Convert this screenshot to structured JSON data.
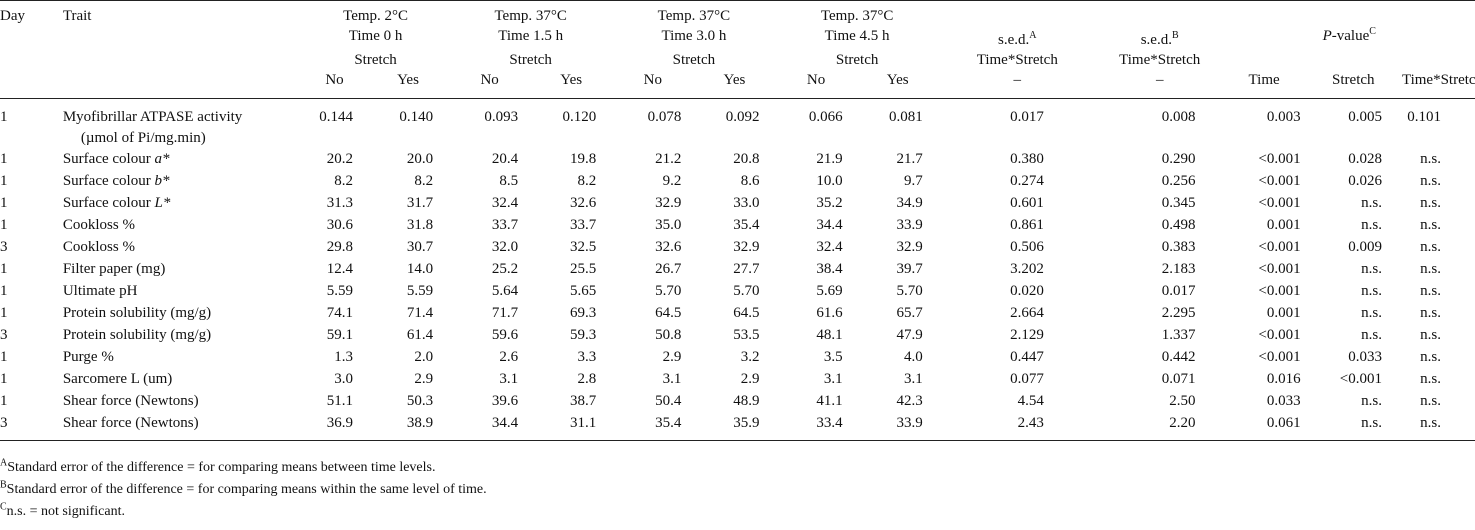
{
  "header": {
    "day": "Day",
    "trait": "Trait",
    "groups": [
      {
        "temp": "Temp. 2°C",
        "time": "Time 0 h",
        "stretch": "Stretch"
      },
      {
        "temp": "Temp. 37°C",
        "time": "Time 1.5 h",
        "stretch": "Stretch"
      },
      {
        "temp": "Temp. 37°C",
        "time": "Time 3.0 h",
        "stretch": "Stretch"
      },
      {
        "temp": "Temp. 37°C",
        "time": "Time 4.5 h",
        "stretch": "Stretch"
      }
    ],
    "no": "No",
    "yes": "Yes",
    "sed_a": {
      "label": "s.e.d.",
      "sup": "A",
      "sub": "Time*Stretch",
      "dash": "–"
    },
    "sed_b": {
      "label": "s.e.d.",
      "sup": "B",
      "sub": "Time*Stretch",
      "dash": "–"
    },
    "pvalue": {
      "italic": "P",
      "rest": "-value",
      "sup": "C"
    },
    "p_cols": [
      "Time",
      "Stretch",
      "Time*Stretch"
    ]
  },
  "rows": [
    {
      "day": "1",
      "trait": "Myofibrillar ATPASE activity",
      "trait_sub": "(µmol of Pi/mg.min)",
      "v": [
        "0.144",
        "0.140",
        "0.093",
        "0.120",
        "0.078",
        "0.092",
        "0.066",
        "0.081"
      ],
      "sed_a": "0.017",
      "sed_b": "0.008",
      "p": [
        "0.003",
        "0.005",
        "0.101"
      ]
    },
    {
      "day": "1",
      "trait": "Surface colour ",
      "trait_it": "a*",
      "v": [
        "20.2",
        "20.0",
        "20.4",
        "19.8",
        "21.2",
        "20.8",
        "21.9",
        "21.7"
      ],
      "sed_a": "0.380",
      "sed_b": "0.290",
      "p": [
        "<0.001",
        "0.028",
        "n.s."
      ]
    },
    {
      "day": "1",
      "trait": "Surface colour ",
      "trait_it": "b*",
      "v": [
        "8.2",
        "8.2",
        "8.5",
        "8.2",
        "9.2",
        "8.6",
        "10.0",
        "9.7"
      ],
      "sed_a": "0.274",
      "sed_b": "0.256",
      "p": [
        "<0.001",
        "0.026",
        "n.s."
      ]
    },
    {
      "day": "1",
      "trait": "Surface colour ",
      "trait_it": "L*",
      "v": [
        "31.3",
        "31.7",
        "32.4",
        "32.6",
        "32.9",
        "33.0",
        "35.2",
        "34.9"
      ],
      "sed_a": "0.601",
      "sed_b": "0.345",
      "p": [
        "<0.001",
        "n.s.",
        "n.s."
      ]
    },
    {
      "day": "1",
      "trait": "Cookloss %",
      "v": [
        "30.6",
        "31.8",
        "33.7",
        "33.7",
        "35.0",
        "35.4",
        "34.4",
        "33.9"
      ],
      "sed_a": "0.861",
      "sed_b": "0.498",
      "p": [
        "0.001",
        "n.s.",
        "n.s."
      ]
    },
    {
      "day": "3",
      "trait": "Cookloss %",
      "v": [
        "29.8",
        "30.7",
        "32.0",
        "32.5",
        "32.6",
        "32.9",
        "32.4",
        "32.9"
      ],
      "sed_a": "0.506",
      "sed_b": "0.383",
      "p": [
        "<0.001",
        "0.009",
        "n.s."
      ]
    },
    {
      "day": "1",
      "trait": "Filter paper (mg)",
      "v": [
        "12.4",
        "14.0",
        "25.2",
        "25.5",
        "26.7",
        "27.7",
        "38.4",
        "39.7"
      ],
      "sed_a": "3.202",
      "sed_b": "2.183",
      "p": [
        "<0.001",
        "n.s.",
        "n.s."
      ]
    },
    {
      "day": "1",
      "trait": "Ultimate pH",
      "v": [
        "5.59",
        "5.59",
        "5.64",
        "5.65",
        "5.70",
        "5.70",
        "5.69",
        "5.70"
      ],
      "sed_a": "0.020",
      "sed_b": "0.017",
      "p": [
        "<0.001",
        "n.s.",
        "n.s."
      ]
    },
    {
      "day": "1",
      "trait": "Protein solubility (mg/g)",
      "v": [
        "74.1",
        "71.4",
        "71.7",
        "69.3",
        "64.5",
        "64.5",
        "61.6",
        "65.7"
      ],
      "sed_a": "2.664",
      "sed_b": "2.295",
      "p": [
        "0.001",
        "n.s.",
        "n.s."
      ]
    },
    {
      "day": "3",
      "trait": "Protein solubility (mg/g)",
      "v": [
        "59.1",
        "61.4",
        "59.6",
        "59.3",
        "50.8",
        "53.5",
        "48.1",
        "47.9"
      ],
      "sed_a": "2.129",
      "sed_b": "1.337",
      "p": [
        "<0.001",
        "n.s.",
        "n.s."
      ]
    },
    {
      "day": "1",
      "trait": "Purge %",
      "v": [
        "1.3",
        "2.0",
        "2.6",
        "3.3",
        "2.9",
        "3.2",
        "3.5",
        "4.0"
      ],
      "sed_a": "0.447",
      "sed_b": "0.442",
      "p": [
        "<0.001",
        "0.033",
        "n.s."
      ]
    },
    {
      "day": "1",
      "trait": "Sarcomere L (um)",
      "v": [
        "3.0",
        "2.9",
        "3.1",
        "2.8",
        "3.1",
        "2.9",
        "3.1",
        "3.1"
      ],
      "sed_a": "0.077",
      "sed_b": "0.071",
      "p": [
        "0.016",
        "<0.001",
        "n.s."
      ]
    },
    {
      "day": "1",
      "trait": "Shear force (Newtons)",
      "v": [
        "51.1",
        "50.3",
        "39.6",
        "38.7",
        "50.4",
        "48.9",
        "41.1",
        "42.3"
      ],
      "sed_a": "4.54",
      "sed_b": "2.50",
      "p": [
        "0.033",
        "n.s.",
        "n.s."
      ]
    },
    {
      "day": "3",
      "trait": "Shear force (Newtons)",
      "v": [
        "36.9",
        "38.9",
        "34.4",
        "31.1",
        "35.4",
        "35.9",
        "33.4",
        "33.9"
      ],
      "sed_a": "2.43",
      "sed_b": "2.20",
      "p": [
        "0.061",
        "n.s.",
        "n.s."
      ]
    }
  ],
  "footnotes": [
    {
      "sup": "A",
      "text": "Standard error of the difference = for comparing means between time levels."
    },
    {
      "sup": "B",
      "text": "Standard error of the difference = for comparing means within the same level of time."
    },
    {
      "sup": "C",
      "text": "n.s. = not significant."
    }
  ]
}
